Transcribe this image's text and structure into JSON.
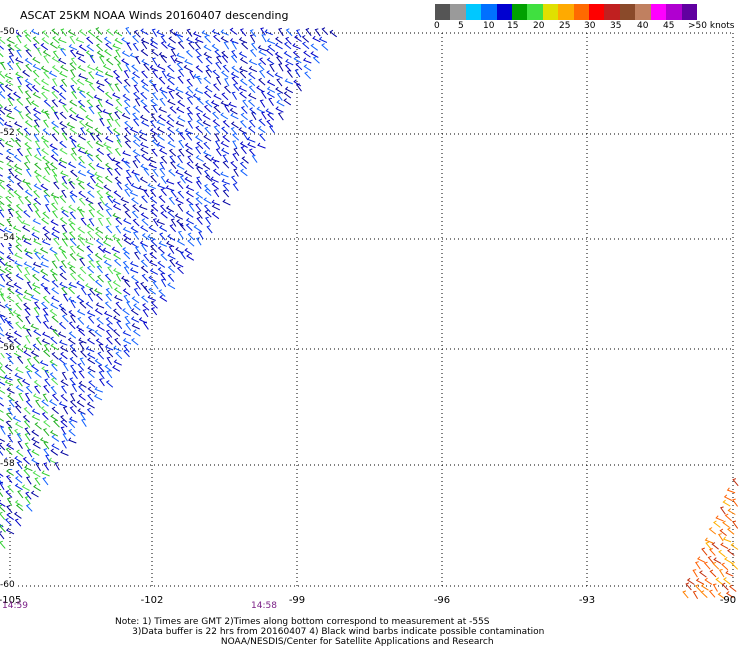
{
  "title": "ASCAT 25KM NOAA Winds 20160407 descending",
  "legend": {
    "colors": [
      "#555555",
      "#9a9a9a",
      "#00c8ff",
      "#0070ff",
      "#0000d0",
      "#00a000",
      "#40e040",
      "#e0e000",
      "#ffaa00",
      "#ff6a00",
      "#ff0000",
      "#c02020",
      "#8a4a2a",
      "#c08060",
      "#ff00ff",
      "#b000d0",
      "#6000a0"
    ],
    "labels": [
      "0",
      "5",
      "10",
      "15",
      "20",
      "25",
      "30",
      "35",
      "40",
      "45",
      ">50 knots"
    ]
  },
  "lat_labels": [
    "-50",
    "-52",
    "-54",
    "-56",
    "-58",
    "-60"
  ],
  "lon_labels": [
    "-105",
    "-102",
    "-99",
    "-96",
    "-93",
    "-90"
  ],
  "times": [
    "14:59",
    "14:58"
  ],
  "notes": [
    "Note: 1) Times are GMT 2)Times along bottom correspond to measurement at -55S",
    "      3)Data buffer is 22 hrs from 20160407 4) Black wind barbs indicate possible contamination",
    "                                     NOAA/NESDIS/Center for Satellite Applications and Research"
  ]
}
